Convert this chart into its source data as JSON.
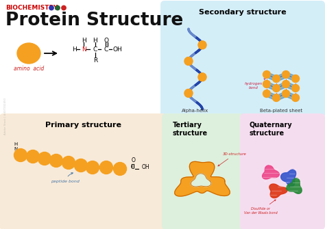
{
  "title": "Protein Structure",
  "subtitle": "BIOCHEMISTRY",
  "subtitle_color": "#cc0000",
  "title_color": "#111111",
  "bg_color": "#ffffff",
  "amino_acid_label": "amino  acid",
  "amino_acid_label_color": "#cc2222",
  "secondary_box_color": "#d4eef8",
  "primary_box_color": "#f8ead8",
  "tertiary_box_color": "#ddf0dd",
  "quaternary_box_color": "#f5ddf0",
  "secondary_title": "Secondary structure",
  "primary_title": "Primary structure",
  "tertiary_title": "Tertiary\nstructure",
  "quaternary_title": "Quaternary\nstructure",
  "alpha_helix_label": "Alpha-helix",
  "beta_sheet_label": "Beta-plated sheet",
  "hydrogen_label": "hydrogen\nbond",
  "peptide_label": "peptide bond",
  "threed_label": "3D-structure",
  "disulfide_label": "Disulfide or\nVan der Waals bond",
  "orange": "#f5a020",
  "blue_dark": "#3a66aa",
  "blue_helix": "#2244aa",
  "teal_sheet": "#5599cc",
  "dot_colors": [
    "#3333aa",
    "#226633",
    "#cc2222"
  ]
}
